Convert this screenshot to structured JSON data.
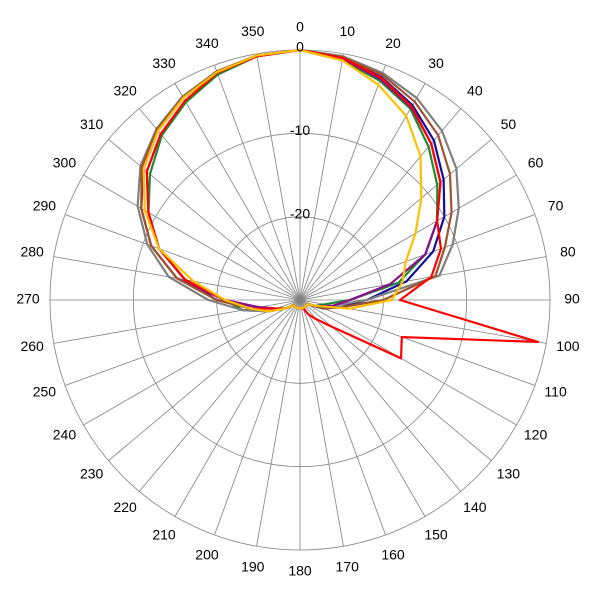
{
  "chart_data": {
    "type": "polar",
    "rlim": [
      -30,
      0
    ],
    "rticks": [
      -20,
      -10,
      0
    ],
    "thetaticks": [
      0,
      10,
      20,
      30,
      40,
      50,
      60,
      70,
      80,
      90,
      100,
      110,
      120,
      130,
      140,
      150,
      160,
      170,
      180,
      190,
      200,
      210,
      220,
      230,
      240,
      250,
      260,
      270,
      280,
      290,
      300,
      310,
      320,
      330,
      340,
      350
    ],
    "theta": [
      0,
      10,
      20,
      30,
      40,
      50,
      60,
      70,
      80,
      90,
      100,
      110,
      120,
      130,
      140,
      150,
      160,
      170,
      180,
      190,
      200,
      210,
      220,
      230,
      240,
      250,
      260,
      270,
      280,
      290,
      300,
      310,
      320,
      330,
      340,
      350
    ],
    "grid": true,
    "series": [
      {
        "color": "#10109c",
        "values": [
          0,
          -0.5,
          -1.5,
          -3,
          -5,
          -7.5,
          -10,
          -13,
          -17,
          -22,
          -25,
          -27,
          -29,
          -29,
          -29,
          -29,
          -29,
          -29,
          -29,
          -29,
          -29,
          -29,
          -29,
          -29,
          -28,
          -27,
          -25,
          -20,
          -16,
          -12,
          -9,
          -6,
          -4,
          -2.5,
          -1,
          -0.3
        ]
      },
      {
        "color": "#1e8c2e",
        "values": [
          0,
          -0.8,
          -2,
          -3.5,
          -6,
          -8.5,
          -11,
          -14,
          -18,
          -24,
          -27,
          -28,
          -29,
          -29,
          -29,
          -29,
          -29,
          -29,
          -29,
          -29,
          -29,
          -29,
          -29,
          -29,
          -28,
          -26,
          -23,
          -21,
          -16,
          -12,
          -9,
          -6.5,
          -4.2,
          -2.6,
          -1.2,
          -0.3
        ]
      },
      {
        "color": "#808080",
        "values": [
          0,
          -0.3,
          -1,
          -2,
          -3.5,
          -5.5,
          -8,
          -10.5,
          -13,
          -22,
          -26,
          -27.5,
          -29,
          -29,
          -29,
          -29,
          -29,
          -29,
          -29,
          -29,
          -29,
          -29,
          -29,
          -29,
          -28,
          -26,
          -23,
          -19,
          -14,
          -10.5,
          -7.5,
          -5,
          -3.2,
          -1.8,
          -0.8,
          -0.2
        ]
      },
      {
        "color": "#8a0a8a",
        "values": [
          0,
          -0.6,
          -1.8,
          -3.3,
          -5.5,
          -8,
          -11,
          -14,
          -19,
          -24,
          -26,
          -28,
          -29,
          -29,
          -29,
          -29,
          -29,
          -29,
          -29,
          -29,
          -29,
          -29,
          -29,
          -29,
          -28,
          -27,
          -25,
          -21,
          -15,
          -11,
          -8,
          -5.5,
          -3.5,
          -2,
          -0.9,
          -0.2
        ]
      },
      {
        "color": "#a0522d",
        "values": [
          0,
          -0.4,
          -1.2,
          -2.5,
          -4.2,
          -6.5,
          -9,
          -11.5,
          -13.5,
          -20,
          -25,
          -27,
          -29,
          -29,
          -29,
          -29,
          -29,
          -29,
          -29,
          -29,
          -29,
          -29,
          -29,
          -29,
          -28,
          -26,
          -24,
          -20,
          -15,
          -11,
          -8,
          -5.2,
          -3.3,
          -1.9,
          -0.8,
          -0.2
        ]
      },
      {
        "color": "#ff0000",
        "values": [
          0,
          -0.5,
          -1.6,
          -3.2,
          -5.5,
          -8,
          -11,
          -12,
          -14,
          -18,
          -1,
          -17,
          -16,
          -25,
          -27,
          -28,
          -29,
          -29,
          -29,
          -29,
          -29,
          -29,
          -29,
          -29,
          -28,
          -27,
          -24,
          -21,
          -16,
          -12,
          -9,
          -6,
          -4,
          -2.4,
          -1,
          -0.3
        ]
      },
      {
        "color": "#ffc000",
        "values": [
          0,
          -0.8,
          -2.5,
          -4.5,
          -7.5,
          -11,
          -14,
          -16.5,
          -17.5,
          -19,
          -24,
          -28,
          -29,
          -29,
          -29,
          -29,
          -29,
          -29,
          -29,
          -29,
          -29,
          -29,
          -29,
          -29,
          -28,
          -26,
          -24,
          -21,
          -17,
          -12,
          -8.5,
          -5.5,
          -3.5,
          -2,
          -0.9,
          -0.2
        ]
      }
    ]
  }
}
